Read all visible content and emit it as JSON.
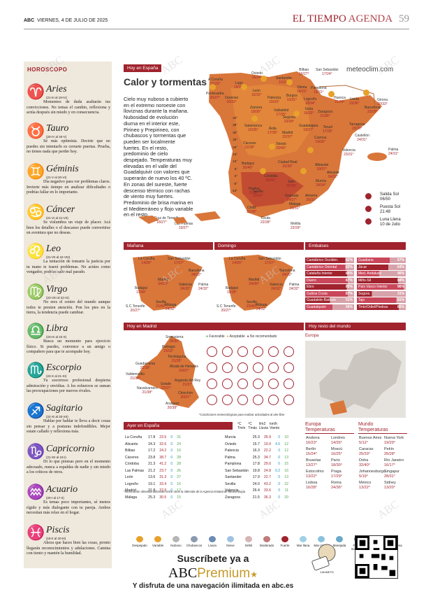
{
  "header": {
    "brand": "ABC",
    "date": "VIERNES, 4 DE JULIO DE 2025",
    "section": "EL TIEMPO",
    "subsection": "AGENDA",
    "page": "59"
  },
  "horoscope": {
    "title": "HOROSCOPO",
    "signs": [
      {
        "name": "Aries",
        "dates": "(21-III al 19-IV)",
        "symbol": "♈",
        "text": "Momentos de duda asaltarán tus convicciones. No temas el cambio, reflexiona y actúa después sin miedo y en consecuencia."
      },
      {
        "name": "Tauro",
        "dates": "(20-IV al 20-V)",
        "symbol": "♉",
        "text": "Sé más optimista. Decirte que no puedes sin intentarlo es cerrarte puertas. Prueba, no tienes nada que perder hoy."
      },
      {
        "name": "Géminis",
        "dates": "(21-V al 20-VI)",
        "symbol": "♊",
        "text": "Día negativo para ver problemas claros. Invierte más tiempo en analizar dificultades o podrías fallar en lo importante."
      },
      {
        "name": "Cáncer",
        "dates": "(21-VI al 21-VII)",
        "symbol": "♋",
        "text": "Se vislumbra un viaje de placer. Acá bien los detalles o el descanso puede convertirse en aventura que no deseas."
      },
      {
        "name": "Leo",
        "dates": "(21-VII al 22-VIII)",
        "symbol": "♌",
        "text": "La tentación de tomarte la justicia por tu mano te traerá problemas. No actúes como vengador, podrías salir mal parado."
      },
      {
        "name": "Virgo",
        "dates": "(23-VIII al 22-IX)",
        "symbol": "♍",
        "text": "No eres el centro del mundo aunque todos te presten atención. Pon los pies en la tierra, la tendencia puede cambiar."
      },
      {
        "name": "Libra",
        "dates": "(23-IX al 22-X)",
        "symbol": "♎",
        "text": "Busca un momento para ejercicio físico. Si puedes, convence a un amigo o compañero para que te acompañe hoy."
      },
      {
        "name": "Escorpio",
        "dates": "(23-X al 21-XI)",
        "symbol": "♏",
        "text": "Tu socorroso profesional despierta admiración y envidias. A los esfuerzos se suman las preocupaciones por nuevos rivales."
      },
      {
        "name": "Sagitario",
        "dates": "(22-XI al 20-XII)",
        "symbol": "♐",
        "text": "Hablar por hablar te lleva a decir cosas sin pensar y a posturas indefendibles. Mejor estate callado y reflexiona más."
      },
      {
        "name": "Capricornio",
        "dates": "(21-XII al 19-I)",
        "symbol": "♑",
        "text": "Di lo que piensas pero en el momento adecuado, nunca a espaldas de nadie y sin miedo a los críticos de otros."
      },
      {
        "name": "Acuario",
        "dates": "(20-I al 17-II)",
        "symbol": "♒",
        "text": "Es temas poco importantes, sé menos rígido y más dialogante con tu pareja. Ambos necesitan más relax en el hogar."
      },
      {
        "name": "Piscis",
        "dates": "(18-II al 20-III)",
        "symbol": "♓",
        "text": "Ahora que haces bien las cosas, pronto llegarán reconocimientos y adulaciones. Camina con tiento y mantén la humildad."
      }
    ]
  },
  "weather": {
    "tag_spain": "Hoy en España",
    "headline": "Calor y tormentas",
    "story": "Cielo muy nuboso a cubierto en el extremo noroeste con lloviznas durante la mañana. Nubosidad de evolución diurna en el interior este, Pirineo y Prepirineo, con chubascos y tormentas que pueden ser localmente fuertes. En el resto, predominio de cielo despejado. Temperaturas muy elevadas en el valle del Guadalquivir con valores que superarán de nuevo los 40 ºC. En zonas del sureste, fuerte descenso térmico con rachas de viento muy fuertes. Predominio de brisa marina en el Mediterráneo y flojo variable en el resto.",
    "site": "meteoclim.com",
    "scale": [
      "40°",
      "35°",
      "30°",
      "25°",
      "20°",
      "15°",
      "10°",
      "5°",
      "0°",
      "-5°",
      "-10°"
    ],
    "cities": [
      {
        "n": "A Coruña",
        "t": "15/23°"
      },
      {
        "n": "Oviedo",
        "t": "16/24°"
      },
      {
        "n": "Bilbao",
        "t": "16/27°"
      },
      {
        "n": "San Sebastián",
        "t": "17/24°"
      },
      {
        "n": "Lugo",
        "t": "14/26°"
      },
      {
        "n": "Santander",
        "t": "16/24°"
      },
      {
        "n": "Pamplona",
        "t": "16/31°"
      },
      {
        "n": "Pontevedra",
        "t": "20/27°"
      },
      {
        "n": "Ourense",
        "t": "16/32°"
      },
      {
        "n": "León",
        "t": "16/32°"
      },
      {
        "n": "Palencia",
        "t": "15/33°"
      },
      {
        "n": "Burgos",
        "t": "13/31°"
      },
      {
        "n": "Vitoria",
        "t": "14/31°"
      },
      {
        "n": "Logroño",
        "t": "18/34°"
      },
      {
        "n": "Huesca",
        "t": "21/34°"
      },
      {
        "n": "Lleida",
        "t": "23/36°"
      },
      {
        "n": "Girona",
        "t": "20/33°"
      },
      {
        "n": "Barcelona",
        "t": "23/29°"
      },
      {
        "n": "Zamora",
        "t": "18/36°"
      },
      {
        "n": "Valladolid",
        "t": "17/35°"
      },
      {
        "n": "Soria",
        "t": "16/32°"
      },
      {
        "n": "Zaragoza",
        "t": "21/36°"
      },
      {
        "n": "Tarragona",
        "t": "23/30°"
      },
      {
        "n": "Salamanca",
        "t": "16/35°"
      },
      {
        "n": "Segovia",
        "t": "23/34°"
      },
      {
        "n": "Guadalajara",
        "t": "19/37°"
      },
      {
        "n": "Teruel",
        "t": "17/35°"
      },
      {
        "n": "Ávila",
        "t": "17/35°"
      },
      {
        "n": "Madrid",
        "t": "22/37°"
      },
      {
        "n": "Cuenca",
        "t": "19/36°"
      },
      {
        "n": "Castellón",
        "t": "24/31°"
      },
      {
        "n": "Cáceres",
        "t": "22/39°"
      },
      {
        "n": "Toledo",
        "t": "23/40°"
      },
      {
        "n": "Valencia",
        "t": "23/31°"
      },
      {
        "n": "Palma",
        "t": "24/31°"
      },
      {
        "n": "Badajoz",
        "t": "20/40°"
      },
      {
        "n": "Ciudad Real",
        "t": "22/39°"
      },
      {
        "n": "Albacete",
        "t": "19/37°"
      },
      {
        "n": "Alicante",
        "t": "24/32°"
      },
      {
        "n": "Córdoba",
        "t": "25/42°"
      },
      {
        "n": "Jaén",
        "t": "25/39°"
      },
      {
        "n": "Murcia",
        "t": "24/34°"
      },
      {
        "n": "Huelva",
        "t": "21/35°"
      },
      {
        "n": "Sevilla",
        "t": "22/42°"
      },
      {
        "n": "Granada",
        "t": "24/37°"
      },
      {
        "n": "Almería",
        "t": "25/31°"
      },
      {
        "n": "Cádiz",
        "t": "22/30°"
      },
      {
        "n": "Málaga",
        "t": "23/31°"
      },
      {
        "n": "Ceuta",
        "t": "22/28°"
      },
      {
        "n": "Melilla",
        "t": "22/29°"
      },
      {
        "n": "Santa Cruz de Tenerife",
        "t": "18/27°"
      },
      {
        "n": "Las Palmas",
        "t": "19/27°"
      }
    ],
    "sun": {
      "sunrise_label": "Salida Sol",
      "sunrise": "06/50",
      "sunset_label": "Puesta Sol",
      "sunset": "21:48",
      "moon_label": "Luna Llena",
      "moon": "10 de Julio"
    },
    "tag_manana": "Mañana",
    "tag_domingo": "Domingo",
    "manana": [
      {
        "n": "La Coruña",
        "t": "14/26°"
      },
      {
        "n": "San Sebastián",
        "t": "17/27°"
      },
      {
        "n": "Barcelona",
        "t": "24/32°"
      },
      {
        "n": "Madrid",
        "t": "24/39°"
      },
      {
        "n": "Badajoz",
        "t": "17/40°"
      },
      {
        "n": "Valencia",
        "t": "24/32°"
      },
      {
        "n": "Palma",
        "t": "24/32°"
      },
      {
        "n": "Sevilla",
        "t": "21/40°"
      },
      {
        "n": "Málaga",
        "t": "24/32°"
      },
      {
        "n": "S.C.Tenerife",
        "t": "20/27°"
      }
    ],
    "domingo": [
      {
        "n": "La Coruña",
        "t": "14/26°"
      },
      {
        "n": "San Sebastián",
        "t": "17/27°"
      },
      {
        "n": "Barcelona",
        "t": "24/32°"
      },
      {
        "n": "Madrid",
        "t": "24/39°"
      },
      {
        "n": "Badajoz",
        "t": "19/39°"
      },
      {
        "n": "Valencia",
        "t": "24/32°"
      },
      {
        "n": "Palma",
        "t": "24/32°"
      },
      {
        "n": "Sevilla",
        "t": "21/40°"
      },
      {
        "n": "Málaga",
        "t": "24/32°"
      },
      {
        "n": "S.C.Tenerife",
        "t": "20/27°"
      }
    ]
  },
  "embalses": {
    "tag": "Embalses",
    "left": [
      {
        "n": "Cantábrico Occiden.",
        "p": "82%"
      },
      {
        "n": "Cantábrico Oriental",
        "p": "82%"
      },
      {
        "n": "Cataluña Interior",
        "p": "86%"
      },
      {
        "n": "Duero",
        "p": "87%"
      },
      {
        "n": "Ebro",
        "p": "85%"
      },
      {
        "n": "Galicia Costa",
        "p": "87%"
      },
      {
        "n": "Guadalete-Barbate",
        "p": "51%"
      },
      {
        "n": "Guadalquivir",
        "p": "56%"
      }
    ],
    "right": [
      {
        "n": "Guadiana",
        "p": "67%"
      },
      {
        "n": "Júcar",
        "p": "64%"
      },
      {
        "n": "Med. Andaluza",
        "p": "46%"
      },
      {
        "n": "Miño-Sil",
        "p": "84%"
      },
      {
        "n": "País Vasco Interior",
        "p": "96%"
      },
      {
        "n": "Segura",
        "p": "31%"
      },
      {
        "n": "Tajo",
        "p": "81%"
      },
      {
        "n": "Tinto/Odiel/Piedras",
        "p": "86%"
      }
    ]
  },
  "madrid": {
    "tag": "Hoy en Madrid",
    "legend": [
      "Favorable",
      "Aceptable",
      "No recomendado"
    ],
    "towns": [
      {
        "n": "Somosierra",
        "t": "18/30°"
      },
      {
        "n": "Buitrago",
        "t": "15/32°"
      },
      {
        "n": "Torrelaguna",
        "t": "21/35°"
      },
      {
        "n": "Guadarrama",
        "t": "21/35°"
      },
      {
        "n": "Alcalá de Henares",
        "t": "20/37°"
      },
      {
        "n": "Valdemorillo",
        "t": "21/36°"
      },
      {
        "n": "Getafe",
        "t": "22/37°"
      },
      {
        "n": "Arganda del Rey",
        "t": "21/37°"
      },
      {
        "n": "Navalcarnero",
        "t": "21/38°"
      },
      {
        "n": "Chinchón",
        "t": "20/37°"
      },
      {
        "n": "Aranjuez",
        "t": "20/38°"
      }
    ],
    "note": "*Condiciones meteorológicas para realizar actividades al aire libre"
  },
  "world": {
    "tag": "Hoy resto del mundo",
    "region": "Europa"
  },
  "ayer": {
    "tag": "Ayer en España",
    "cols": [
      "ºC Tmín",
      "ºC Tmáx",
      "l/m2 Lluvia",
      "km/h Viento"
    ],
    "left": [
      [
        "La Coruña",
        "17.8",
        "23.5",
        "0",
        "31"
      ],
      [
        "Alicante",
        "24.3",
        "32.6",
        "0",
        "24"
      ],
      [
        "Bilbao",
        "17.2",
        "24.2",
        "0",
        "16"
      ],
      [
        "Cáceres",
        "23.8",
        "38.7",
        "0",
        "28"
      ],
      [
        "Córdoba",
        "21.3",
        "41.2",
        "0",
        "28"
      ],
      [
        "Las Palmas",
        "21.2",
        "23.7",
        "0",
        "26"
      ],
      [
        "León",
        "13.6",
        "31.3",
        "0",
        "27"
      ],
      [
        "Logroño",
        "19.1",
        "33.4",
        "0",
        "16"
      ],
      [
        "Madrid",
        "21.8",
        "37.9",
        "0",
        "17"
      ],
      [
        "Málaga",
        "25.3",
        "30.5",
        "0",
        "15"
      ]
    ],
    "right": [
      [
        "Murcia",
        "25.3",
        "35.9",
        "0",
        "10"
      ],
      [
        "Oviedo",
        "15.7",
        "19.9",
        "4.6",
        "12"
      ],
      [
        "Palencia",
        "16.3",
        "22.2",
        "0",
        "12"
      ],
      [
        "Palma",
        "25.3",
        "34.7",
        "0",
        "13"
      ],
      [
        "Pamplona",
        "17.8",
        "29.0",
        "0",
        "15"
      ],
      [
        "San Sebastián",
        "19.8",
        "24.8",
        "0.2",
        "16"
      ],
      [
        "Santander",
        "17.9",
        "22.7",
        "0",
        "13"
      ],
      [
        "Sevilla",
        "24.0",
        "43.2",
        "0",
        "22"
      ],
      [
        "Valencia",
        "26.4",
        "33.6",
        "0",
        "11"
      ],
      [
        "Zaragoza",
        "21.5",
        "36.3",
        "0",
        "20"
      ]
    ],
    "note": "*Información obtenida utilizando entre otros la obtenida de la Agencia Estatal de Meteorología"
  },
  "europa": {
    "title": "Europa\nTemperaturas",
    "rows": [
      [
        "Andorra",
        "16/23°",
        "Londres",
        "14/26°"
      ],
      [
        "Berlín",
        "15/24°",
        "Moscú",
        "16/25°"
      ],
      [
        "Bruselas",
        "13/27°",
        "París",
        "18/30°"
      ],
      [
        "Estocolmo",
        "13/22°",
        "Praga",
        "17/29°"
      ],
      [
        "Lisboa",
        "16/28°",
        "Roma",
        "24/36°"
      ]
    ]
  },
  "mundo": {
    "title": "Mundo\nTemperaturas",
    "rows": [
      [
        "Buenos Aires",
        "5/12°",
        "Nueva York",
        "19/29°"
      ],
      [
        "Caracas",
        "25/33°",
        "Pekín",
        "25/28°"
      ],
      [
        "Doha",
        "32/40°",
        "Río Janeiro",
        "16/17°"
      ],
      [
        "Johannesburgo",
        "5/19°",
        "Singapur",
        "28/31°"
      ],
      [
        "México",
        "13/22°",
        "Sidney",
        "13/20°"
      ]
    ]
  },
  "weather_legend": [
    "Despejado",
    "Variable",
    "Nuboso",
    "Chubascos",
    "Lluvia",
    "Nieve",
    "Débil",
    "Moderado",
    "Fuerte",
    "Mar llana",
    "Mar rizada",
    "Marejada",
    "Fuerte marejada",
    "Mar gruesa",
    "Muy gruesa"
  ],
  "ad": {
    "line1": "Suscríbete ya a",
    "brand_a": "ABC",
    "brand_b": "Premium",
    "line3": "Y disfruta de una navegación ilimitada en abc.es",
    "signature": "J.M.NIETO"
  },
  "colors": {
    "accent": "#a0232d",
    "sun": "#e8a12b",
    "emb_dark": "#a0232d",
    "emb_light": "#c9475a",
    "green": "#4ba54b"
  }
}
